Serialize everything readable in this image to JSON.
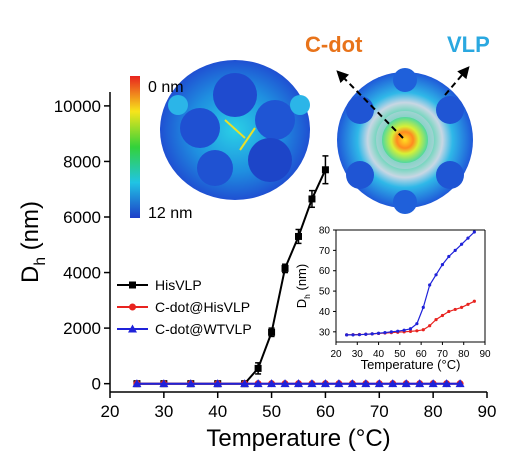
{
  "chart_data": [
    {
      "type": "line",
      "xlabel": "Temperature (°C)",
      "ylabel_main": "D",
      "ylabel_sub": "h",
      "ylabel_unit": " (nm)",
      "xlim": [
        20,
        90
      ],
      "ylim": [
        -300,
        10500
      ],
      "xticks": [
        "20",
        "30",
        "40",
        "50",
        "60",
        "70",
        "80",
        "90"
      ],
      "yticks": [
        "0",
        "2000",
        "4000",
        "6000",
        "8000",
        "10000"
      ],
      "legend_position": "lower-left",
      "series": [
        {
          "name": "HisVLP",
          "color": "#000000",
          "marker": "square",
          "points": [
            [
              25,
              0
            ],
            [
              30,
              0
            ],
            [
              35,
              0
            ],
            [
              40,
              0
            ],
            [
              45,
              0
            ],
            [
              47.5,
              550
            ],
            [
              50,
              1850
            ],
            [
              52.5,
              4150
            ],
            [
              55,
              5300
            ],
            [
              57.5,
              6650
            ],
            [
              60,
              7700
            ]
          ],
          "errors": [
            0,
            0,
            0,
            0,
            0,
            200,
            150,
            150,
            250,
            300,
            500
          ]
        },
        {
          "name": "C-dot@HisVLP",
          "color": "#e8231f",
          "marker": "circle",
          "points": [
            [
              25,
              0
            ],
            [
              30,
              0
            ],
            [
              35,
              0
            ],
            [
              40,
              0
            ],
            [
              45,
              0
            ],
            [
              47.5,
              0
            ],
            [
              50,
              0
            ],
            [
              52.5,
              0
            ],
            [
              55,
              0
            ],
            [
              57.5,
              0
            ],
            [
              60,
              0
            ],
            [
              62.5,
              0
            ],
            [
              65,
              0
            ],
            [
              67.5,
              0
            ],
            [
              70,
              0
            ],
            [
              72.5,
              0
            ],
            [
              75,
              0
            ],
            [
              77.5,
              0
            ],
            [
              80,
              0
            ],
            [
              82.5,
              0
            ],
            [
              85,
              0
            ]
          ]
        },
        {
          "name": "C-dot@WTVLP",
          "color": "#1f22d9",
          "marker": "triangle",
          "points": [
            [
              25,
              0
            ],
            [
              30,
              0
            ],
            [
              35,
              0
            ],
            [
              40,
              0
            ],
            [
              45,
              0
            ],
            [
              47.5,
              0
            ],
            [
              50,
              0
            ],
            [
              52.5,
              0
            ],
            [
              55,
              0
            ],
            [
              57.5,
              0
            ],
            [
              60,
              0
            ],
            [
              62.5,
              0
            ],
            [
              65,
              0
            ],
            [
              67.5,
              0
            ],
            [
              70,
              0
            ],
            [
              72.5,
              0
            ],
            [
              75,
              0
            ],
            [
              77.5,
              0
            ],
            [
              80,
              0
            ],
            [
              82.5,
              0
            ],
            [
              85,
              0
            ]
          ]
        }
      ]
    },
    {
      "type": "line",
      "xlabel": "Temperature (°C)",
      "ylabel_main": "D",
      "ylabel_sub": "h",
      "ylabel_unit": " (nm)",
      "xlim": [
        20,
        90
      ],
      "ylim": [
        25,
        80
      ],
      "xticks": [
        "20",
        "30",
        "40",
        "50",
        "60",
        "70",
        "80",
        "90"
      ],
      "yticks": [
        "30",
        "40",
        "50",
        "60",
        "70",
        "80"
      ],
      "series": [
        {
          "color": "#e8231f",
          "points": [
            [
              25,
              28.5
            ],
            [
              28,
              28.6
            ],
            [
              31,
              28.7
            ],
            [
              34,
              28.8
            ],
            [
              37,
              29
            ],
            [
              40,
              29.2
            ],
            [
              43,
              29.4
            ],
            [
              46,
              29.6
            ],
            [
              49,
              29.8
            ],
            [
              52,
              30
            ],
            [
              55,
              30.2
            ],
            [
              58,
              30.5
            ],
            [
              61,
              31
            ],
            [
              64,
              33
            ],
            [
              67,
              36
            ],
            [
              70,
              38
            ],
            [
              73,
              40
            ],
            [
              76,
              41
            ],
            [
              79,
              42
            ],
            [
              82,
              43.5
            ],
            [
              85,
              45
            ]
          ]
        },
        {
          "color": "#1f22d9",
          "points": [
            [
              25,
              28.5
            ],
            [
              28,
              28.5
            ],
            [
              31,
              28.6
            ],
            [
              34,
              28.8
            ],
            [
              37,
              29
            ],
            [
              40,
              29.3
            ],
            [
              43,
              29.6
            ],
            [
              46,
              30
            ],
            [
              49,
              30.3
            ],
            [
              52,
              30.8
            ],
            [
              55,
              31.5
            ],
            [
              58,
              34
            ],
            [
              61,
              42
            ],
            [
              64,
              53
            ],
            [
              67,
              58
            ],
            [
              70,
              63
            ],
            [
              73,
              67
            ],
            [
              76,
              70
            ],
            [
              79,
              73
            ],
            [
              82,
              76
            ],
            [
              85,
              79
            ]
          ]
        }
      ]
    }
  ],
  "annotations": {
    "colorbar_top": "0 nm",
    "colorbar_bottom": "12 nm",
    "cdot_label": "C-dot",
    "vlp_label": "VLP",
    "cdot_color": "#e8731a",
    "vlp_color": "#2aa8e0"
  }
}
